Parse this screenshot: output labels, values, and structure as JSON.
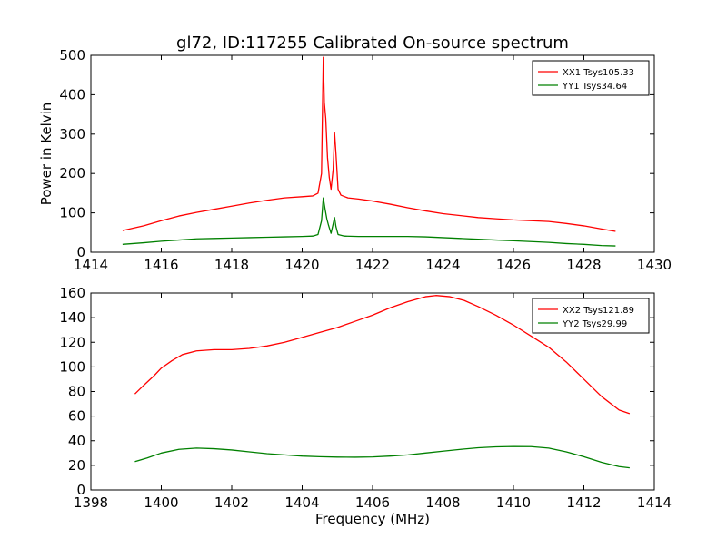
{
  "figure": {
    "title": "gl72, ID:117255 Calibrated On-source spectrum"
  },
  "chart_data": [
    {
      "type": "line",
      "ylabel": "Power in Kelvin",
      "xlabel": "",
      "xlim": [
        1414,
        1430
      ],
      "ylim": [
        0,
        500
      ],
      "xticks": [
        1414,
        1416,
        1418,
        1420,
        1422,
        1424,
        1426,
        1428,
        1430
      ],
      "yticks": [
        0,
        100,
        200,
        300,
        400,
        500
      ],
      "grid": false,
      "legend_placement": "top-right",
      "series": [
        {
          "name": "XX1 Tsys105.33",
          "color": "#ff0000",
          "x": [
            1414.9,
            1415.5,
            1416.0,
            1416.5,
            1417.0,
            1417.5,
            1418.0,
            1418.5,
            1419.0,
            1419.5,
            1420.0,
            1420.3,
            1420.45,
            1420.55,
            1420.6,
            1420.63,
            1420.67,
            1420.72,
            1420.77,
            1420.82,
            1420.88,
            1420.92,
            1420.96,
            1421.02,
            1421.1,
            1421.3,
            1421.6,
            1422.0,
            1422.5,
            1423.0,
            1423.5,
            1424.0,
            1424.5,
            1425.0,
            1425.5,
            1426.0,
            1426.5,
            1427.0,
            1427.5,
            1428.0,
            1428.5,
            1428.9
          ],
          "y": [
            55,
            67,
            80,
            92,
            101,
            109,
            117,
            125,
            132,
            138,
            141,
            143,
            150,
            200,
            495,
            380,
            340,
            240,
            190,
            160,
            210,
            305,
            250,
            160,
            145,
            138,
            135,
            130,
            122,
            113,
            105,
            98,
            93,
            88,
            85,
            82,
            80,
            78,
            73,
            67,
            59,
            53
          ]
        },
        {
          "name": "YY1 Tsys34.64",
          "color": "#008000",
          "x": [
            1414.9,
            1415.5,
            1416.0,
            1416.5,
            1417.0,
            1417.5,
            1418.0,
            1418.5,
            1419.0,
            1419.5,
            1420.0,
            1420.3,
            1420.45,
            1420.55,
            1420.6,
            1420.65,
            1420.7,
            1420.75,
            1420.82,
            1420.88,
            1420.92,
            1420.96,
            1421.02,
            1421.2,
            1421.6,
            1422.0,
            1422.5,
            1423.0,
            1423.5,
            1424.0,
            1424.5,
            1425.0,
            1425.5,
            1426.0,
            1426.5,
            1427.0,
            1427.5,
            1428.0,
            1428.5,
            1428.9
          ],
          "y": [
            20,
            24,
            28,
            31,
            34,
            35,
            36,
            37,
            38,
            39,
            40,
            41,
            45,
            80,
            138,
            110,
            85,
            68,
            48,
            72,
            88,
            65,
            45,
            41,
            40,
            40,
            40,
            40,
            39,
            37,
            35,
            33,
            31,
            29,
            27,
            25,
            22,
            20,
            17,
            16
          ]
        }
      ]
    },
    {
      "type": "line",
      "ylabel": "",
      "xlabel": "Frequency (MHz)",
      "xlim": [
        1398,
        1414
      ],
      "ylim": [
        0,
        160
      ],
      "xticks": [
        1398,
        1400,
        1402,
        1404,
        1406,
        1408,
        1410,
        1412,
        1414
      ],
      "yticks": [
        0,
        20,
        40,
        60,
        80,
        100,
        120,
        140,
        160
      ],
      "grid": false,
      "legend_placement": "top-right",
      "series": [
        {
          "name": "XX2 Tsys121.89",
          "color": "#ff0000",
          "x": [
            1399.25,
            1399.5,
            1399.8,
            1400.0,
            1400.3,
            1400.6,
            1401.0,
            1401.5,
            1402.0,
            1402.5,
            1403.0,
            1403.5,
            1404.0,
            1404.5,
            1405.0,
            1405.5,
            1406.0,
            1406.5,
            1407.0,
            1407.5,
            1407.8,
            1408.2,
            1408.6,
            1409.0,
            1409.5,
            1410.0,
            1410.5,
            1411.0,
            1411.5,
            1412.0,
            1412.5,
            1413.0,
            1413.3
          ],
          "y": [
            78,
            85,
            93,
            99,
            105,
            110,
            113,
            114,
            114,
            115,
            117,
            120,
            124,
            128,
            132,
            137,
            142,
            148,
            153,
            157,
            158,
            157,
            154,
            149,
            142,
            134,
            125,
            116,
            104,
            90,
            76,
            65,
            62
          ]
        },
        {
          "name": "YY2 Tsys29.99",
          "color": "#008000",
          "x": [
            1399.25,
            1399.6,
            1400.0,
            1400.5,
            1401.0,
            1401.5,
            1402.0,
            1402.5,
            1403.0,
            1403.5,
            1404.0,
            1404.5,
            1405.0,
            1405.5,
            1406.0,
            1406.5,
            1407.0,
            1407.5,
            1408.0,
            1408.5,
            1409.0,
            1409.5,
            1410.0,
            1410.5,
            1411.0,
            1411.5,
            1412.0,
            1412.5,
            1413.0,
            1413.3
          ],
          "y": [
            23,
            26,
            30,
            33,
            34,
            33.5,
            32.5,
            31,
            29.5,
            28.5,
            27.5,
            27,
            26.7,
            26.6,
            26.8,
            27.5,
            28.5,
            30,
            31.5,
            33,
            34.3,
            35,
            35.3,
            35.2,
            34,
            31,
            27,
            22.5,
            19,
            18
          ]
        }
      ]
    }
  ]
}
